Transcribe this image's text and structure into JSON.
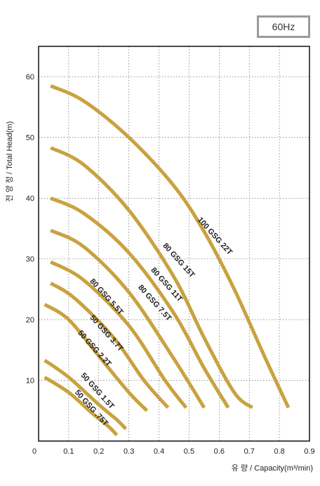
{
  "badge": "60Hz",
  "chart_data": {
    "type": "line",
    "ylabel": "전 양 정 / Total Head(m)",
    "xlabel": "유 량 / Capacity(m³/min)",
    "xlim": [
      0,
      0.9
    ],
    "ylim": [
      0,
      65
    ],
    "x_ticks": [
      "0",
      "0.1",
      "0.2",
      "0.3",
      "0.4",
      "0.5",
      "0.6",
      "0.7",
      "0.8",
      "0.9"
    ],
    "y_ticks": [
      "10",
      "20",
      "30",
      "40",
      "50",
      "60"
    ],
    "grid": true,
    "series": [
      {
        "name": "100 GSG 22T",
        "x": [
          0.04,
          0.15,
          0.3,
          0.45,
          0.55,
          0.65,
          0.75,
          0.83
        ],
        "y": [
          58.5,
          56,
          50,
          42,
          34.5,
          25,
          14,
          5.5
        ]
      },
      {
        "name": "80 GSG 15T",
        "x": [
          0.04,
          0.15,
          0.3,
          0.45,
          0.55,
          0.65,
          0.71
        ],
        "y": [
          48.3,
          45.5,
          38,
          27,
          17,
          8,
          5.5
        ]
      },
      {
        "name": "80 GSG 11T",
        "x": [
          0.04,
          0.15,
          0.3,
          0.45,
          0.55,
          0.63
        ],
        "y": [
          40,
          37.5,
          31,
          21,
          12,
          5.5
        ]
      },
      {
        "name": "80 GSG 7.5T",
        "x": [
          0.04,
          0.15,
          0.3,
          0.45,
          0.55
        ],
        "y": [
          34.7,
          32,
          24.5,
          13.5,
          5.5
        ]
      },
      {
        "name": "80 GSG 5.5T",
        "x": [
          0.04,
          0.15,
          0.3,
          0.42,
          0.49
        ],
        "y": [
          29.5,
          26.5,
          19,
          10,
          5.5
        ]
      },
      {
        "name": "50 GSG 3.7T",
        "x": [
          0.04,
          0.12,
          0.25,
          0.35,
          0.43
        ],
        "y": [
          26,
          23.5,
          17,
          10,
          5.5
        ]
      },
      {
        "name": "50 GSG 2.2T",
        "x": [
          0.02,
          0.1,
          0.2,
          0.3,
          0.36
        ],
        "y": [
          22.5,
          20,
          14,
          8,
          5
        ]
      },
      {
        "name": "50 GSG 1.5T",
        "x": [
          0.02,
          0.1,
          0.2,
          0.26,
          0.29
        ],
        "y": [
          13.3,
          10.5,
          6,
          3.5,
          2
        ]
      },
      {
        "name": "50 GSG .75T",
        "x": [
          0.02,
          0.1,
          0.18,
          0.23,
          0.26
        ],
        "y": [
          10.5,
          8,
          4.5,
          2.5,
          1
        ]
      }
    ]
  }
}
